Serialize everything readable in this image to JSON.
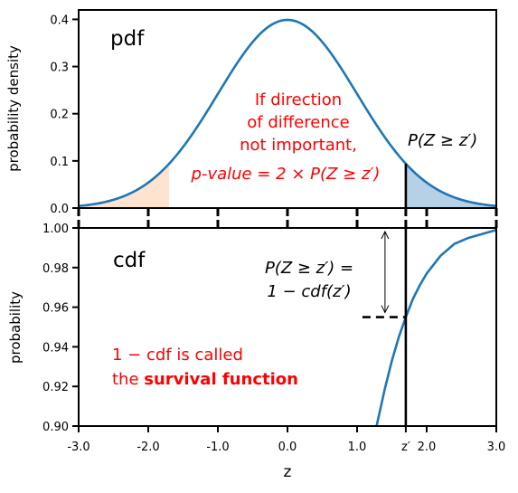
{
  "chart_data": [
    {
      "type": "area",
      "panel_label": "pdf",
      "ylabel": "probability density",
      "xlim": [
        -3.0,
        3.0
      ],
      "ylim": [
        0.0,
        0.42
      ],
      "y_ticks": [
        "0.0",
        "0.1",
        "0.2",
        "0.3",
        "0.4"
      ],
      "x_tick_positions": [
        -3.0,
        -2.0,
        -1.0,
        0.0,
        1.0,
        1.7,
        2.0,
        3.0
      ],
      "curve": "standard normal pdf",
      "x": [
        -3.0,
        -2.5,
        -2.0,
        -1.5,
        -1.0,
        -0.5,
        0.0,
        0.5,
        1.0,
        1.5,
        2.0,
        2.5,
        3.0
      ],
      "y": [
        0.004,
        0.018,
        0.054,
        0.13,
        0.242,
        0.352,
        0.399,
        0.352,
        0.242,
        0.13,
        0.054,
        0.018,
        0.004
      ],
      "shaded_regions": [
        {
          "x_from": -3.0,
          "x_to": -1.7,
          "color": "#fde3d0"
        },
        {
          "x_from": 1.7,
          "x_to": 3.0,
          "color": "#b6d0e6"
        }
      ],
      "vline_x": 1.7,
      "annotations": {
        "tail_label": "P(Z ≥ z′)",
        "lines": [
          "If direction",
          "of difference",
          "not important,"
        ],
        "pvalue_line": "p-value  = 2 × P(Z ≥ z′)",
        "color": "#ff0000"
      },
      "curve_color": "#1f77b4"
    },
    {
      "type": "line",
      "panel_label": "cdf",
      "ylabel": "probability",
      "xlabel": "z",
      "xlim": [
        -3.0,
        3.0
      ],
      "ylim": [
        0.9,
        1.0
      ],
      "y_ticks": [
        "0.90",
        "0.92",
        "0.94",
        "0.96",
        "0.98",
        "1.00"
      ],
      "x_ticks": [
        "-3.0",
        "-2.0",
        "-1.0",
        "0.0",
        "1.0",
        "z′",
        "2.0",
        "3.0"
      ],
      "x_tick_values": [
        -3.0,
        -2.0,
        -1.0,
        0.0,
        1.0,
        1.7,
        2.0,
        3.0
      ],
      "x": [
        1.28,
        1.4,
        1.5,
        1.6,
        1.7,
        1.8,
        1.9,
        2.0,
        2.2,
        2.4,
        2.6,
        2.8,
        3.0
      ],
      "y": [
        0.9,
        0.919,
        0.933,
        0.945,
        0.955,
        0.964,
        0.971,
        0.977,
        0.986,
        0.992,
        0.995,
        0.997,
        0.999
      ],
      "vline_x": 1.7,
      "marker_y": 0.955,
      "annotations": {
        "eq_line1": "P(Z ≥ z′) =",
        "eq_line2": "1 − cdf(z′)",
        "survival_line1": "1 − cdf is called",
        "survival_line2_prefix": "the ",
        "survival_line2_bold": "survival function",
        "color": "#ff0000"
      },
      "curve_color": "#1f77b4"
    }
  ]
}
